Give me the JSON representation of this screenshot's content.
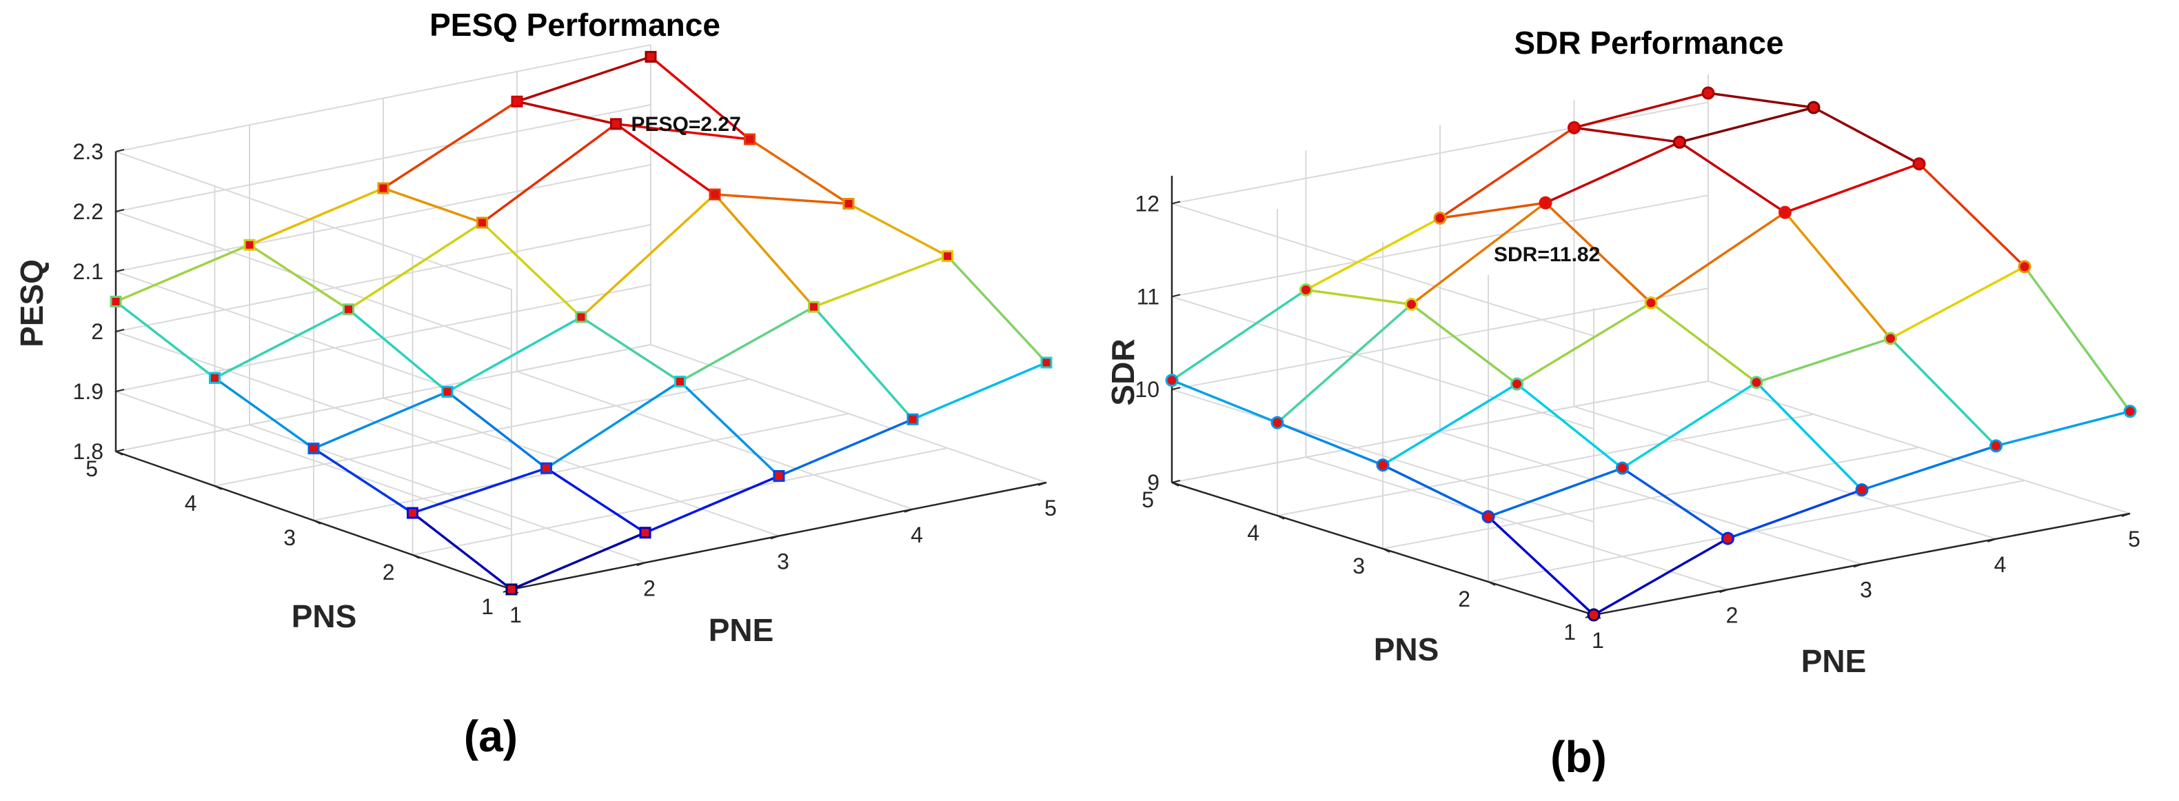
{
  "chart_data": [
    {
      "type": "surface-mesh-3d",
      "title": "PESQ Performance",
      "panel_label": "(a)",
      "xlabel": "PNE",
      "ylabel": "PNS",
      "zlabel": "PESQ",
      "x": [
        1,
        2,
        3,
        4,
        5
      ],
      "y": [
        1,
        2,
        3,
        4,
        5
      ],
      "zlim": [
        1.8,
        2.3
      ],
      "zticks": [
        "1.8",
        "1.9",
        "2",
        "2.1",
        "2.2",
        "2.3"
      ],
      "xticks": [
        "1",
        "2",
        "3",
        "4",
        "5"
      ],
      "yticks": [
        "1",
        "2",
        "3",
        "4",
        "5"
      ],
      "z": [
        [
          1.8,
          1.85,
          1.9,
          1.95,
          2.0
        ],
        [
          1.87,
          1.9,
          2.0,
          2.08,
          2.12
        ],
        [
          1.92,
          1.97,
          2.05,
          2.21,
          2.15
        ],
        [
          1.98,
          2.05,
          2.15,
          2.27,
          2.2
        ],
        [
          2.05,
          2.1,
          2.15,
          2.25,
          2.28
        ]
      ],
      "annotation": {
        "text": "PESQ=2.27",
        "x": 4,
        "y": 4,
        "z": 2.27
      },
      "grid": true
    },
    {
      "type": "surface-mesh-3d",
      "title": "SDR Performance",
      "panel_label": "(b)",
      "xlabel": "PNE",
      "ylabel": "PNS",
      "zlabel": "SDR",
      "x": [
        1,
        2,
        3,
        4,
        5
      ],
      "y": [
        1,
        2,
        3,
        4,
        5
      ],
      "zlim": [
        9,
        12.3
      ],
      "zticks": [
        "9",
        "10",
        "11",
        "12"
      ],
      "xticks": [
        "1",
        "2",
        "3",
        "4",
        "5"
      ],
      "yticks": [
        "1",
        "2",
        "3",
        "4",
        "5"
      ],
      "z": [
        [
          9.0,
          9.55,
          9.8,
          10.0,
          10.1
        ],
        [
          9.7,
          9.95,
          10.6,
          10.8,
          11.3
        ],
        [
          9.9,
          10.5,
          11.1,
          11.8,
          12.05
        ],
        [
          10.0,
          11.0,
          11.82,
          12.2,
          12.3
        ],
        [
          10.1,
          10.8,
          11.3,
          12.0,
          12.1
        ]
      ],
      "annotation": {
        "text": "SDR=11.82",
        "x": 3,
        "y": 4,
        "z": 11.82
      },
      "grid": true
    }
  ]
}
